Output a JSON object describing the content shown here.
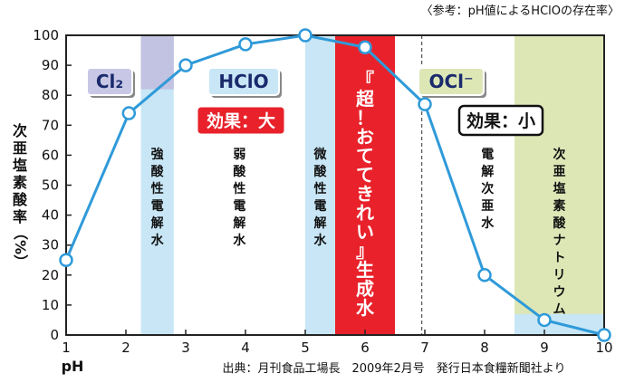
{
  "chart_data": {
    "type": "line",
    "note": "〈参考：pH値によるHClOの存在率〉",
    "xlabel": "pH",
    "ylabel": [
      "次",
      "亜",
      "塩",
      "素",
      "酸",
      "率",
      "（%）"
    ],
    "xlim": [
      1,
      10
    ],
    "ylim": [
      0,
      100
    ],
    "x_ticks": [
      "1",
      "2",
      "3",
      "4",
      "5",
      "6",
      "7",
      "8",
      "9",
      "10"
    ],
    "y_ticks": [
      "0",
      "10",
      "20",
      "30",
      "40",
      "50",
      "60",
      "70",
      "80",
      "90",
      "100"
    ],
    "series": [
      {
        "x": [
          1,
          2.05,
          3,
          4,
          5,
          6,
          7,
          8,
          9,
          10
        ],
        "y": [
          25,
          74,
          90,
          97,
          100,
          96,
          77,
          20,
          5,
          0
        ]
      }
    ],
    "bands": [
      {
        "from": 2.25,
        "to": 2.8,
        "color": "#c8e6f6",
        "label": [
          "強",
          "酸",
          "性",
          "電",
          "解",
          "水"
        ]
      },
      {
        "from": 5.0,
        "to": 5.5,
        "color": "#c8e6f6",
        "label": [
          "微",
          "酸",
          "性",
          "電",
          "解",
          "水"
        ]
      },
      {
        "from": 5.5,
        "to": 6.5,
        "color": "#e8212a",
        "label": [
          "『",
          "超",
          "！",
          "お",
          "て",
          "て",
          "き",
          "れ",
          "い",
          "』",
          "生",
          "成",
          "水"
        ]
      },
      {
        "from": 8.5,
        "to": 10.0,
        "color": "#dde7b6",
        "label": [
          "次",
          "亜",
          "塩",
          "素",
          "酸",
          "ナ",
          "ト",
          "リ",
          "ウ",
          "ム"
        ]
      }
    ],
    "cl2_band": {
      "from": 2.25,
      "to": 2.8,
      "y_from": 82,
      "y_to": 100,
      "color": "#c2c2e2"
    },
    "naocl_lower": {
      "from": 8.5,
      "to": 10.0,
      "y_from": 0,
      "y_to": 7,
      "color": "#c8e6f6"
    },
    "dashed_line_x": 6.95,
    "extra_labels": [
      {
        "x": 3.9,
        "label": [
          "弱",
          "酸",
          "性",
          "電",
          "解",
          "水"
        ]
      },
      {
        "x": 8.05,
        "label": [
          "電",
          "解",
          "次",
          "亜",
          "水"
        ]
      }
    ],
    "species": [
      {
        "text": "Cl₂",
        "bg": "#c8c8e6",
        "color": "#1a2a6c"
      },
      {
        "text": "HClO",
        "bg": "#c8e6f6",
        "color": "#1a2a6c"
      },
      {
        "text": "OCl⁻",
        "bg": "#dde7b6",
        "color": "#1a2a6c"
      }
    ],
    "effect_large": "効果：大",
    "effect_small": "効果：小",
    "source": "出典：月刊食品工場長　2009年2月号　発行日本食糧新聞社より",
    "colors": {
      "line": "#2f9ad9",
      "frame": "#222222",
      "red": "#e8212a"
    }
  }
}
